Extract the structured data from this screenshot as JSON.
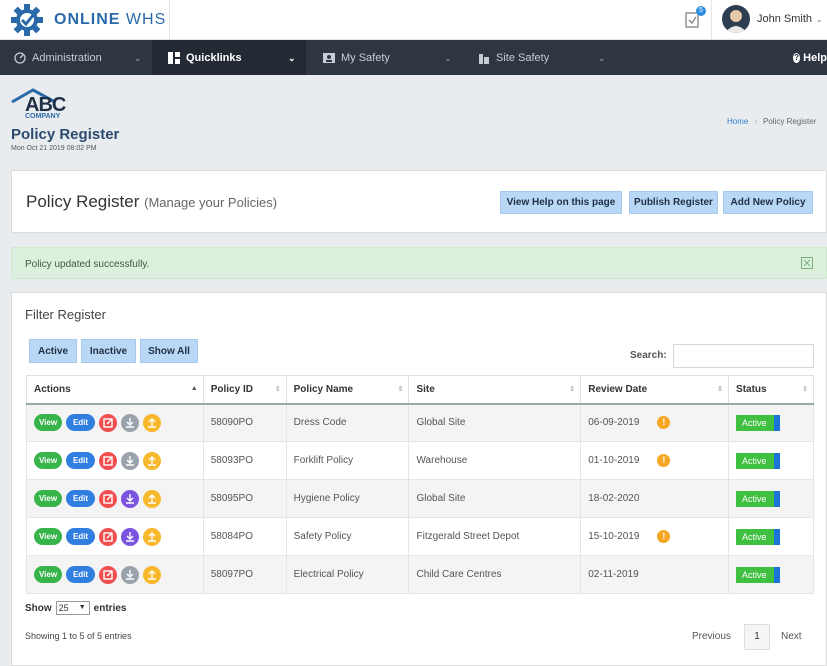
{
  "brand": {
    "name_bold": "ONLINE",
    "name_light": "WHS"
  },
  "header": {
    "notifications_count": "5",
    "user_name": "John Smith"
  },
  "nav": {
    "items": [
      {
        "label": "Administration",
        "icon": "dashboard-icon",
        "active": false
      },
      {
        "label": "Quicklinks",
        "icon": "grid-icon",
        "active": true
      },
      {
        "label": "My Safety",
        "icon": "id-card-icon",
        "active": false
      },
      {
        "label": "Site Safety",
        "icon": "building-icon",
        "active": false
      }
    ],
    "help_label": "Help"
  },
  "page": {
    "logo_text": "ABC",
    "logo_sub": "COMPANY",
    "title": "Policy Register",
    "date": "Mon Oct 21 2019 08:02 PM",
    "breadcrumb": {
      "home": "Home",
      "current": "Policy Register"
    }
  },
  "title_card": {
    "title": "Policy Register",
    "subtitle": "(Manage your Policies)",
    "buttons": {
      "help": "View Help on this page",
      "publish": "Publish Register",
      "add": "Add New Policy"
    }
  },
  "alert": {
    "message": "Policy updated successfully."
  },
  "filter": {
    "title": "Filter Register",
    "buttons": {
      "active": "Active",
      "inactive": "Inactive",
      "all": "Show All"
    },
    "search_label": "Search:",
    "search_value": ""
  },
  "table": {
    "columns": [
      "Actions",
      "Policy ID",
      "Policy Name",
      "Site",
      "Review Date",
      "Status"
    ],
    "action_labels": {
      "view": "View",
      "edit": "Edit"
    },
    "rows": [
      {
        "id": "58090PO",
        "name": "Dress Code",
        "site": "Global Site",
        "date": "06-09-2019",
        "warn": true,
        "status": "Active",
        "download_color": "grey"
      },
      {
        "id": "58093PO",
        "name": "Forklift Policy",
        "site": "Warehouse",
        "date": "01-10-2019",
        "warn": true,
        "status": "Active",
        "download_color": "grey"
      },
      {
        "id": "58095PO",
        "name": "Hygiene Policy",
        "site": "Global Site",
        "date": "18-02-2020",
        "warn": false,
        "status": "Active",
        "download_color": "purple"
      },
      {
        "id": "58084PO",
        "name": "Safety Policy",
        "site": "Fitzgerald Street Depot",
        "date": "15-10-2019",
        "warn": true,
        "status": "Active",
        "download_color": "purple"
      },
      {
        "id": "58097PO",
        "name": "Electrical Policy",
        "site": "Child Care Centres",
        "date": "02-11-2019",
        "warn": false,
        "status": "Active",
        "download_color": "grey"
      }
    ]
  },
  "footer": {
    "show_label": "Show",
    "entries_value": "25",
    "entries_label": "entries",
    "showing": "Showing 1 to 5 of 5 entries",
    "previous": "Previous",
    "page": "1",
    "next": "Next"
  }
}
